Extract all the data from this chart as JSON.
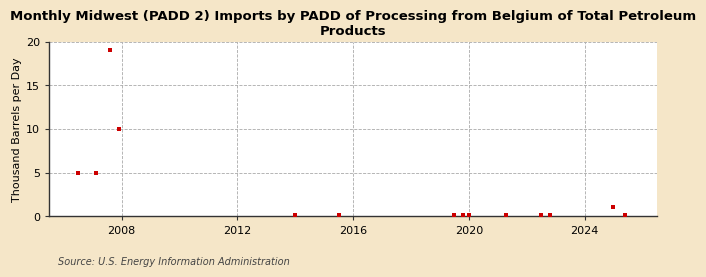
{
  "title": "Monthly Midwest (PADD 2) Imports by PADD of Processing from Belgium of Total Petroleum\nProducts",
  "ylabel": "Thousand Barrels per Day",
  "source": "Source: U.S. Energy Information Administration",
  "outer_bg": "#f5e6c8",
  "plot_bg": "#ffffff",
  "marker_color": "#cc0000",
  "grid_color": "#aaaaaa",
  "spine_color": "#333333",
  "ylim": [
    0,
    20
  ],
  "yticks": [
    0,
    5,
    10,
    15,
    20
  ],
  "xlim": [
    2005.5,
    2026.5
  ],
  "xticks": [
    2008,
    2012,
    2016,
    2020,
    2024
  ],
  "title_fontsize": 9.5,
  "ylabel_fontsize": 8,
  "tick_fontsize": 8,
  "source_fontsize": 7,
  "data_points": [
    [
      2006.5,
      5.0
    ],
    [
      2007.1,
      5.0
    ],
    [
      2007.6,
      19.0
    ],
    [
      2007.9,
      10.0
    ],
    [
      2014.0,
      0.15
    ],
    [
      2015.5,
      0.15
    ],
    [
      2019.5,
      0.15
    ],
    [
      2019.8,
      0.15
    ],
    [
      2020.0,
      0.15
    ],
    [
      2021.3,
      0.15
    ],
    [
      2022.5,
      0.15
    ],
    [
      2022.8,
      0.15
    ],
    [
      2025.0,
      1.1
    ],
    [
      2025.4,
      0.15
    ]
  ]
}
